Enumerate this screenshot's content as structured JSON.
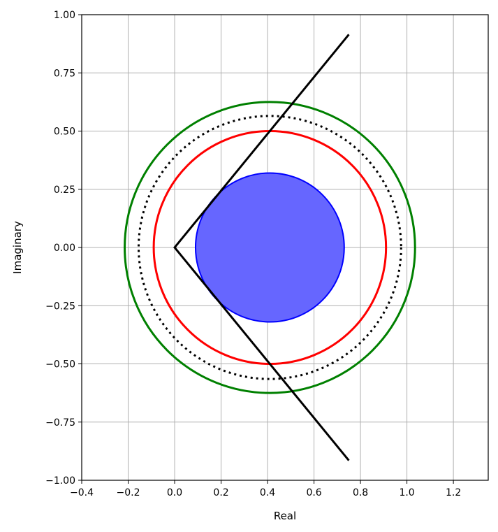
{
  "chart_data": {
    "type": "line",
    "title": "",
    "xlabel": "Real",
    "ylabel": "Imaginary",
    "xlim": [
      -0.4,
      1.35
    ],
    "ylim": [
      -1.0,
      1.0
    ],
    "grid": true,
    "xticks": [
      -0.4,
      -0.2,
      0.0,
      0.2,
      0.4,
      0.6,
      0.8,
      1.0,
      1.2
    ],
    "xtick_labels": [
      "−0.4",
      "−0.2",
      "0.0",
      "0.2",
      "0.4",
      "0.6",
      "0.8",
      "1.0",
      "1.2"
    ],
    "yticks": [
      1.0,
      0.75,
      0.5,
      0.25,
      0.0,
      -0.25,
      -0.5,
      -0.75,
      -1.0
    ],
    "ytick_labels": [
      "1.00",
      "0.75",
      "0.50",
      "0.25",
      "0.00",
      "−0.25",
      "−0.50",
      "−0.75",
      "−1.00"
    ],
    "series": [
      {
        "kind": "filled-circle",
        "center": [
          0.41,
          0.0
        ],
        "radius": 0.32,
        "fill_color": "#6666ff",
        "edge_color": "#0000ff",
        "line_style": "solid"
      },
      {
        "kind": "circle",
        "center": [
          0.41,
          0.0
        ],
        "radius": 0.5,
        "color": "#ff0000",
        "line_style": "solid"
      },
      {
        "kind": "circle",
        "center": [
          0.41,
          0.0
        ],
        "radius": 0.565,
        "color": "#000000",
        "line_style": "dotted"
      },
      {
        "kind": "circle",
        "center": [
          0.41,
          0.0
        ],
        "radius": 0.625,
        "color": "#008000",
        "line_style": "solid"
      },
      {
        "kind": "polyline",
        "color": "#000000",
        "line_style": "solid",
        "x": [
          0.75,
          0.0,
          0.75
        ],
        "y": [
          0.915,
          0.0,
          -0.915
        ]
      }
    ]
  }
}
